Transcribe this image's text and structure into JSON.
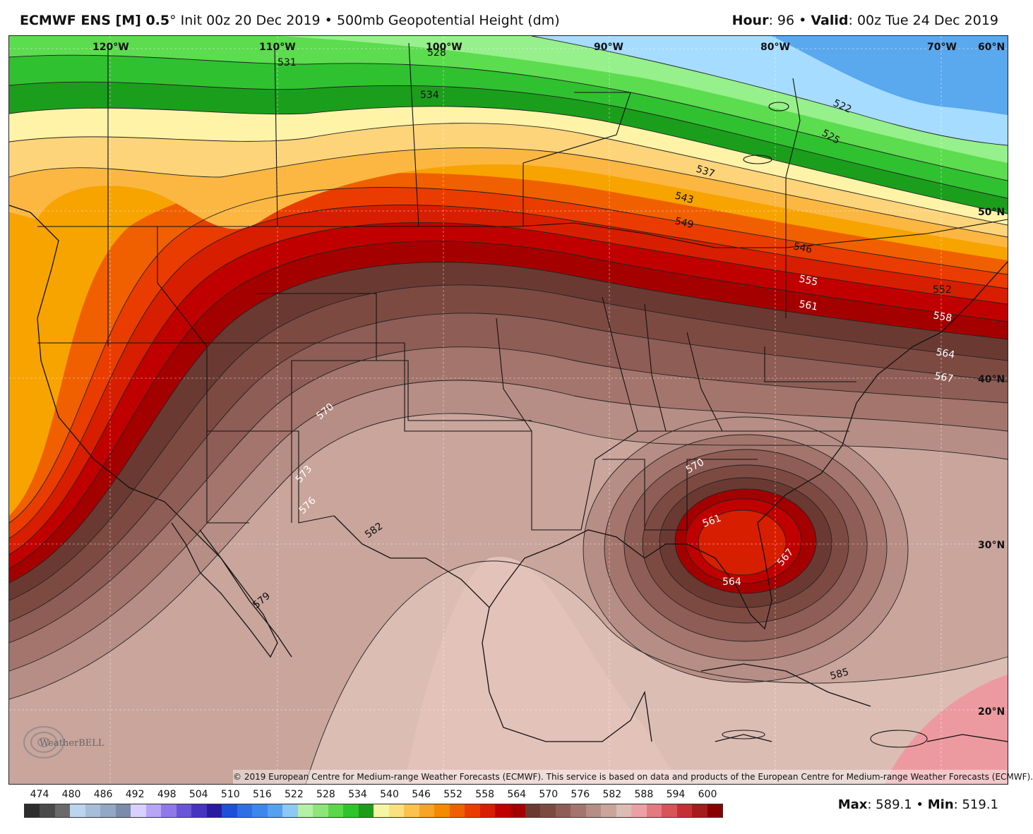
{
  "header": {
    "model": "ECMWF ENS [M] 0.5",
    "degree": "°",
    "init": " Init 00z 20 Dec 2019",
    "bullet": " • ",
    "field": "500mb Geopotential Height (dm)",
    "hour_label": "Hour",
    "hour_value": ": 96",
    "valid_label": "Valid",
    "valid_value": ": 00z Tue 24 Dec 2019"
  },
  "map": {
    "lon_labels": [
      "120°W",
      "110°W",
      "100°W",
      "90°W",
      "80°W",
      "70°W",
      "60°N"
    ],
    "lat_labels": [
      "50°N",
      "40°N",
      "30°N",
      "20°N"
    ],
    "contour_labels": [
      "531",
      "528",
      "534",
      "537",
      "543",
      "549",
      "546",
      "555",
      "561",
      "552",
      "558",
      "564",
      "567",
      "570",
      "573",
      "576",
      "582",
      "579",
      "570",
      "561",
      "567",
      "564",
      "585",
      "522",
      "525"
    ]
  },
  "copyright": "© 2019 European Centre for Medium-range Weather Forecasts (ECMWF). This service is based on data and products of the European Centre for Medium-range Weather Forecasts (ECMWF).",
  "logo_text": "WeatherBELL",
  "colorbar": {
    "ticks": [
      "474",
      "480",
      "486",
      "492",
      "498",
      "504",
      "510",
      "516",
      "522",
      "528",
      "534",
      "540",
      "546",
      "552",
      "558",
      "564",
      "570",
      "576",
      "582",
      "588",
      "594",
      "600"
    ],
    "colors": [
      "#2d2d2d",
      "#4a4a4a",
      "#6a6a6a",
      "#bcd4ee",
      "#a6bed8",
      "#93a8c4",
      "#7a8ca8",
      "#d8d0ff",
      "#b6a6f5",
      "#9078ea",
      "#6a54d8",
      "#4634c0",
      "#2a1aa0",
      "#1e4fd8",
      "#2f6fe6",
      "#3d86ec",
      "#56a0f0",
      "#8ec9f5",
      "#b4f0a8",
      "#8ee678",
      "#5ad84a",
      "#2fc42a",
      "#1c9c1a",
      "#f6f5a5",
      "#fbe07f",
      "#fbc24f",
      "#f8a426",
      "#f38a00",
      "#f06000",
      "#ea3c00",
      "#d81e00",
      "#c00000",
      "#a40000",
      "#6a3a32",
      "#7d4a42",
      "#8e5d55",
      "#a4756c",
      "#b68e85",
      "#c9a59c",
      "#dbbdb4",
      "#eca0a6",
      "#e37a80",
      "#d6545a",
      "#c43036",
      "#a41c1c",
      "#8a0000"
    ]
  },
  "stats": {
    "max_label": "Max",
    "max_value": ": 589.1",
    "bullet": " • ",
    "min_label": "Min",
    "min_value": ": 519.1"
  },
  "palette": {
    "band_colors": [
      "#f7a300",
      "#fbb742",
      "#fdd47a",
      "#fff3a8",
      "#1b9e1c",
      "#30c130",
      "#5cdc4f",
      "#96f08b",
      "#a6dcff",
      "#5aa8ee"
    ]
  }
}
